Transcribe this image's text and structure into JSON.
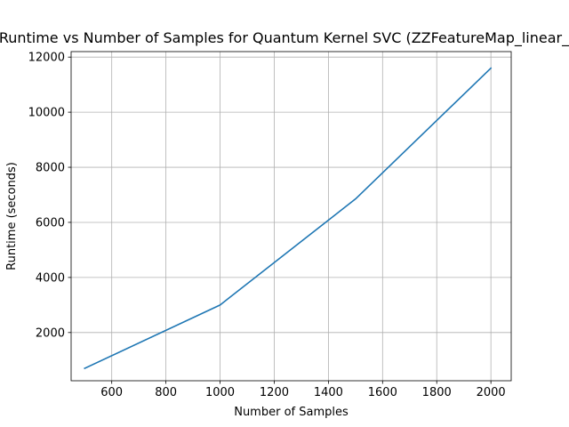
{
  "chart_data": {
    "type": "line",
    "title": "Runtime vs Number of Samples for Quantum Kernel SVC (ZZFeatureMap_linear_re",
    "xlabel": "Number of Samples",
    "ylabel": "Runtime (seconds)",
    "xlim": [
      450,
      2075
    ],
    "ylim": [
      250,
      12200
    ],
    "xticks": [
      600,
      800,
      1000,
      1200,
      1400,
      1600,
      1800,
      2000
    ],
    "yticks": [
      2000,
      4000,
      6000,
      8000,
      10000,
      12000
    ],
    "grid": true,
    "series": [
      {
        "color": "#1f77b4",
        "x": [
          500,
          1000,
          1500,
          2000
        ],
        "y": [
          700,
          3000,
          6850,
          11600
        ]
      }
    ]
  }
}
